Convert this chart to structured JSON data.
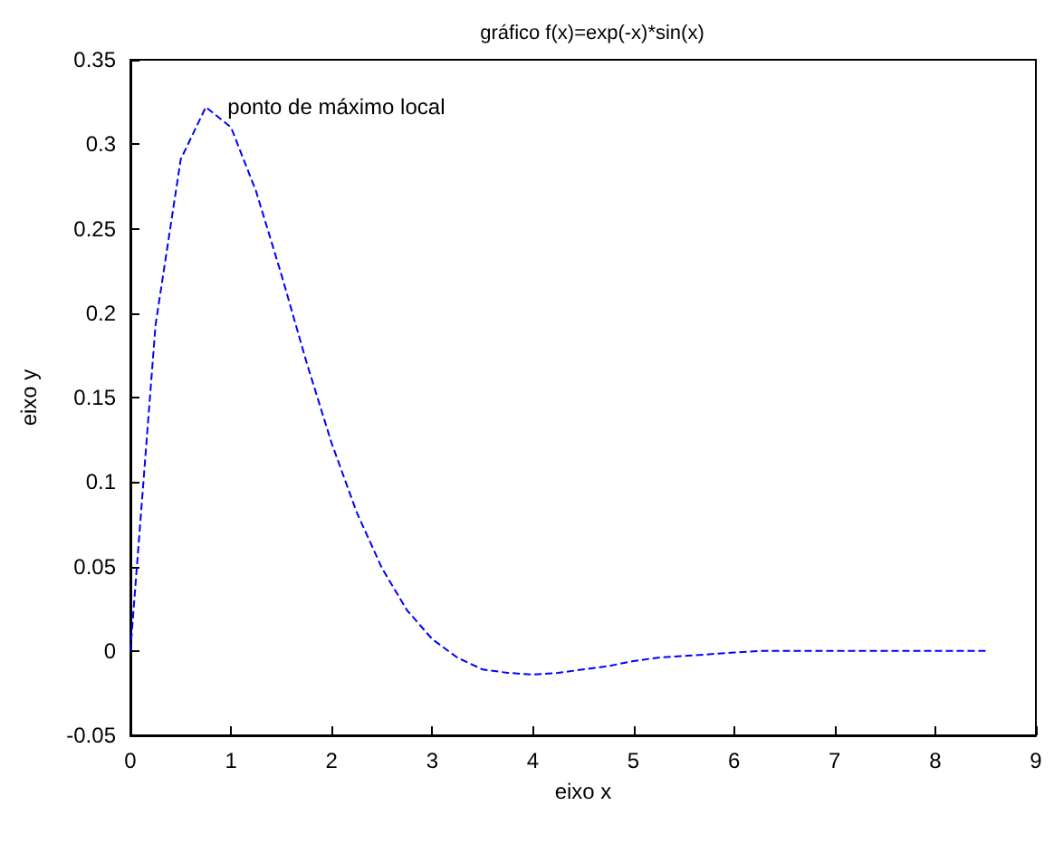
{
  "chart_data": {
    "type": "line",
    "title": "gráfico f(x)=exp(-x)*sin(x)",
    "xlabel": "eixo x",
    "ylabel": "eixo y",
    "x": [
      0,
      0.25,
      0.5,
      0.75,
      1,
      1.25,
      1.5,
      1.75,
      2,
      2.25,
      2.5,
      2.75,
      3,
      3.25,
      3.5,
      3.75,
      4,
      4.25,
      4.5,
      4.75,
      5,
      5.25,
      5.5,
      5.75,
      6,
      6.25,
      6.5,
      6.75,
      7,
      7.25,
      7.5,
      7.75,
      8,
      8.25,
      8.5
    ],
    "series": [
      {
        "color": "#0000ff",
        "values": [
          0,
          0.193,
          0.291,
          0.322,
          0.31,
          0.272,
          0.223,
          0.171,
          0.123,
          0.082,
          0.049,
          0.024,
          0.007,
          -0.004,
          -0.011,
          -0.013,
          -0.014,
          -0.013,
          -0.011,
          -0.009,
          -0.006,
          -0.004,
          -0.003,
          -0.002,
          -0.001,
          0,
          0,
          0,
          0,
          0,
          0,
          0,
          0,
          0,
          0
        ]
      }
    ],
    "xlim": [
      0,
      9
    ],
    "xticks": [
      0,
      1,
      2,
      3,
      4,
      5,
      6,
      7,
      8,
      9
    ],
    "ylim": [
      -0.05,
      0.35
    ],
    "yticks": [
      -0.05,
      0,
      0.05,
      0.1,
      0.15,
      0.2,
      0.25,
      0.3,
      0.35
    ],
    "annotations": [
      {
        "text": "ponto de máximo local",
        "x": 0.75,
        "y": 0.322
      }
    ],
    "marker": "none",
    "line_style": "dashed"
  }
}
